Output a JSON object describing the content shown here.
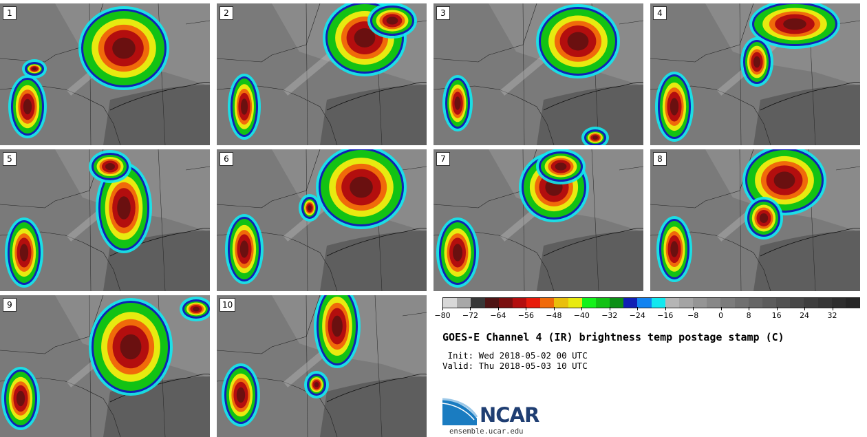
{
  "panels": [
    "1",
    "2",
    "3",
    "4",
    "5",
    "6",
    "7",
    "8",
    "9",
    "10"
  ],
  "colorbar": {
    "colors": [
      "#d8d8d8",
      "#a8a8a8",
      "#383838",
      "#4e1414",
      "#7a0f0f",
      "#b30e0e",
      "#e81b0b",
      "#f06a0a",
      "#e9bf0d",
      "#e8ea10",
      "#14f21a",
      "#12c214",
      "#0c8f16",
      "#1020b4",
      "#1283f0",
      "#12e8ef",
      "#b5b5b5",
      "#a4a4a4",
      "#959595",
      "#888888",
      "#7c7c7c",
      "#707070",
      "#666666",
      "#5c5c5c",
      "#525252",
      "#484848",
      "#3e3e3e",
      "#363636",
      "#2e2e2e",
      "#262626"
    ],
    "tick_labels": [
      "−80",
      "−72",
      "−64",
      "−56",
      "−48",
      "−40",
      "−32",
      "−24",
      "−16",
      "−8",
      "0",
      "8",
      "16",
      "24",
      "32"
    ]
  },
  "title": "GOES-E Channel 4 (IR) brightness temp postage stamp (C)",
  "init": " Init: Wed 2018-05-02 00 UTC",
  "valid": "Valid: Thu 2018-05-03 10 UTC",
  "logo_text": "NCAR",
  "url": "ensemble.ucar.edu"
}
